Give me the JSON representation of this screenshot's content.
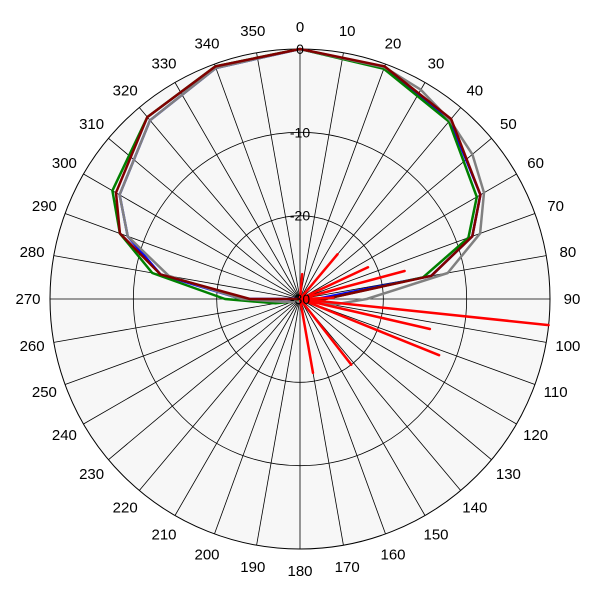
{
  "chart_data": {
    "type": "polar-line",
    "angle_unit": "degrees",
    "angle_direction": "clockwise",
    "zero_at": "top",
    "angle_ticks": [
      0,
      10,
      20,
      30,
      40,
      50,
      60,
      70,
      80,
      90,
      100,
      110,
      120,
      130,
      140,
      150,
      160,
      170,
      180,
      190,
      200,
      210,
      220,
      230,
      240,
      250,
      260,
      270,
      280,
      290,
      300,
      310,
      320,
      330,
      340,
      350
    ],
    "radial_ticks": [
      0,
      -10,
      -20,
      -30
    ],
    "radial_range": [
      -30,
      0
    ],
    "grid": true,
    "legend": "none",
    "series": [
      {
        "color": "#0000ff",
        "points": [
          [
            0,
            0
          ],
          [
            20,
            -0.5
          ],
          [
            40,
            -2
          ],
          [
            60,
            -5
          ],
          [
            70,
            -8
          ],
          [
            80,
            -14
          ],
          [
            90,
            -28
          ],
          [
            100,
            -30
          ],
          [
            260,
            -30
          ],
          [
            270,
            -23
          ],
          [
            280,
            -13
          ],
          [
            290,
            -8
          ],
          [
            300,
            -5
          ],
          [
            320,
            -2
          ],
          [
            340,
            -0.5
          ],
          [
            360,
            0
          ]
        ]
      },
      {
        "color": "#008000",
        "points": [
          [
            0,
            0
          ],
          [
            20,
            -0.6
          ],
          [
            40,
            -2.2
          ],
          [
            60,
            -5.5
          ],
          [
            70,
            -8.5
          ],
          [
            80,
            -15
          ],
          [
            90,
            -27
          ],
          [
            100,
            -29
          ],
          [
            260,
            -27
          ],
          [
            270,
            -21
          ],
          [
            280,
            -12
          ],
          [
            290,
            -7
          ],
          [
            300,
            -4
          ],
          [
            320,
            -1.5
          ],
          [
            340,
            -0.3
          ],
          [
            360,
            0
          ]
        ]
      },
      {
        "color": "#808080",
        "points": [
          [
            0,
            0
          ],
          [
            20,
            -0.4
          ],
          [
            30,
            -1
          ],
          [
            40,
            -2
          ],
          [
            50,
            -3
          ],
          [
            60,
            -4.5
          ],
          [
            70,
            -7
          ],
          [
            80,
            -12
          ],
          [
            90,
            -22
          ],
          [
            100,
            -26
          ],
          [
            110,
            -29
          ],
          [
            250,
            -29
          ],
          [
            260,
            -28
          ],
          [
            270,
            -23
          ],
          [
            280,
            -14
          ],
          [
            290,
            -8
          ],
          [
            300,
            -5
          ],
          [
            320,
            -2
          ],
          [
            340,
            -0.5
          ],
          [
            360,
            0
          ]
        ]
      },
      {
        "color": "#800000",
        "points": [
          [
            0,
            0
          ],
          [
            20,
            -0.3
          ],
          [
            40,
            -1.8
          ],
          [
            60,
            -5
          ],
          [
            70,
            -8
          ],
          [
            80,
            -14
          ],
          [
            90,
            -27
          ],
          [
            100,
            -30
          ],
          [
            260,
            -30
          ],
          [
            270,
            -24
          ],
          [
            280,
            -13
          ],
          [
            290,
            -7
          ],
          [
            300,
            -4.5
          ],
          [
            320,
            -1.5
          ],
          [
            340,
            -0.3
          ],
          [
            360,
            0
          ]
        ]
      },
      {
        "color": "#ff0000",
        "points": [
          [
            0,
            -30
          ],
          [
            5,
            -27
          ],
          [
            10,
            -30
          ],
          [
            30,
            -30
          ],
          [
            40,
            -23
          ],
          [
            45,
            -30
          ],
          [
            60,
            -30
          ],
          [
            65,
            -21
          ],
          [
            70,
            -30
          ],
          [
            75,
            -17
          ],
          [
            82,
            -30
          ],
          [
            88,
            -26
          ],
          [
            92,
            -30
          ],
          [
            96,
            0
          ],
          [
            100,
            -30
          ],
          [
            103,
            -14
          ],
          [
            108,
            -30
          ],
          [
            112,
            -12
          ],
          [
            118,
            -30
          ],
          [
            135,
            -30
          ],
          [
            142,
            -20
          ],
          [
            150,
            -30
          ],
          [
            165,
            -30
          ],
          [
            170,
            -21
          ],
          [
            176,
            -30
          ],
          [
            360,
            -30
          ]
        ]
      }
    ]
  }
}
